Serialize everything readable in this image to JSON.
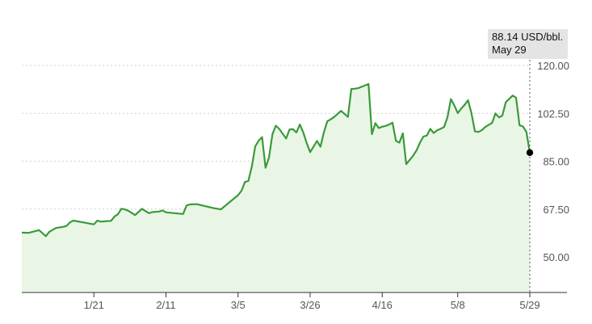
{
  "tooltip": {
    "value": "88.14 USD/bbl.",
    "date": "May 29"
  },
  "colors": {
    "line": "#3a9a3a",
    "fill": "#e9f6e6",
    "marker": "#000000",
    "grid": "#cfcfcf"
  },
  "chart_data": {
    "type": "area",
    "title": "",
    "xlabel": "",
    "ylabel": "",
    "unit": "USD/bbl.",
    "ylim": [
      36.0,
      127.0
    ],
    "y_ticks": [
      "50.00",
      "67.50",
      "85.00",
      "102.50",
      "120.00"
    ],
    "y_tick_values": [
      50.0,
      67.5,
      85.0,
      102.5,
      120.0
    ],
    "x_ticks": [
      "1/21",
      "2/11",
      "3/5",
      "3/26",
      "4/16",
      "5/8",
      "5/29"
    ],
    "x_tick_positions": [
      21,
      42,
      63,
      84,
      105,
      127,
      148
    ],
    "grid": true,
    "y_axis_side": "right",
    "x": [
      0,
      2,
      5,
      7,
      8,
      10,
      12,
      13,
      14,
      15,
      21,
      22,
      23,
      26,
      27,
      28,
      29,
      30,
      31,
      33,
      35,
      37,
      38,
      40,
      41,
      42,
      47,
      48,
      49,
      51,
      56,
      58,
      63,
      64,
      65,
      66,
      67,
      68,
      69,
      70,
      71,
      72,
      73,
      74,
      75,
      76,
      77,
      78,
      79,
      80,
      81,
      82,
      83,
      84,
      86,
      87,
      88,
      89,
      90,
      91,
      93,
      94,
      95,
      96,
      97,
      98,
      99,
      101,
      102,
      103,
      104,
      105,
      106,
      107,
      108,
      109,
      110,
      111,
      112,
      114,
      115,
      116,
      117,
      118,
      119,
      120,
      121,
      122,
      123,
      124,
      125,
      126,
      127,
      128,
      129,
      130,
      131,
      132,
      133,
      134,
      135,
      137,
      138,
      139,
      140,
      141,
      142,
      143,
      144,
      145,
      146,
      147,
      148
    ],
    "values": [
      58.9,
      58.8,
      59.8,
      57.6,
      59.2,
      60.6,
      61.0,
      61.3,
      62.6,
      63.3,
      61.9,
      63.3,
      62.9,
      63.2,
      64.8,
      65.6,
      67.6,
      67.4,
      66.9,
      65.3,
      67.6,
      66.0,
      66.4,
      66.6,
      67.0,
      66.3,
      65.7,
      68.8,
      69.2,
      69.3,
      67.8,
      67.4,
      72.6,
      74.2,
      77.4,
      77.8,
      83.0,
      90.4,
      92.5,
      93.8,
      82.6,
      86.2,
      94.8,
      98.0,
      96.8,
      95.0,
      93.3,
      96.6,
      96.7,
      95.5,
      98.4,
      95.5,
      91.6,
      88.3,
      92.4,
      90.3,
      95.5,
      99.6,
      100.3,
      101.2,
      103.4,
      102.3,
      101.2,
      111.4,
      111.5,
      111.7,
      112.2,
      113.2,
      94.9,
      98.9,
      97.1,
      97.6,
      97.9,
      98.4,
      99.1,
      92.4,
      91.8,
      95.2,
      83.9,
      87.0,
      89.0,
      91.8,
      94.0,
      94.4,
      96.8,
      95.3,
      96.3,
      96.8,
      97.5,
      101.0,
      107.7,
      105.4,
      102.6,
      104.2,
      105.6,
      107.3,
      102.5,
      95.9,
      95.7,
      96.3,
      97.5,
      99.0,
      102.5,
      101.0,
      101.7,
      106.6,
      107.8,
      109.0,
      108.2,
      98.1,
      97.7,
      95.7,
      88.14
    ],
    "last_point": {
      "label": "May 29",
      "value": 88.14
    }
  }
}
